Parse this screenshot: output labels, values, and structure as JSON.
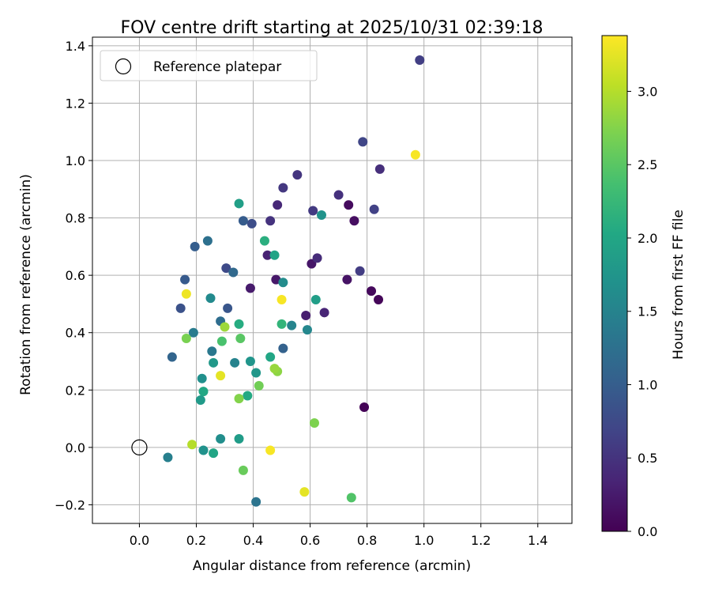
{
  "chart_data": {
    "type": "scatter",
    "title": "FOV centre drift starting at 2025/10/31 02:39:18",
    "xlabel": "Angular distance from reference (arcmin)",
    "ylabel": "Rotation from reference (arcmin)",
    "xlim": [
      -0.165,
      1.52
    ],
    "ylim": [
      -0.265,
      1.43
    ],
    "grid": true,
    "xticks": [
      0.0,
      0.2,
      0.4,
      0.6,
      0.8,
      1.0,
      1.2,
      1.4
    ],
    "xtick_labels": [
      "0.0",
      "0.2",
      "0.4",
      "0.6",
      "0.8",
      "1.0",
      "1.2",
      "1.4"
    ],
    "yticks": [
      -0.2,
      0.0,
      0.2,
      0.4,
      0.6,
      0.8,
      1.0,
      1.2,
      1.4
    ],
    "ytick_labels": [
      "−0.2",
      "0.0",
      "0.2",
      "0.4",
      "0.6",
      "0.8",
      "1.0",
      "1.2",
      "1.4"
    ],
    "legend": {
      "label": "Reference platepar",
      "placement": "top-left"
    },
    "reference_point": {
      "x": 0.0,
      "y": 0.0
    },
    "colorbar": {
      "label": "Hours from first FF file",
      "min": 0.0,
      "max": 3.38,
      "ticks": [
        0.0,
        0.5,
        1.0,
        1.5,
        2.0,
        2.5,
        3.0
      ],
      "tick_labels": [
        "0.0",
        "0.5",
        "1.0",
        "1.5",
        "2.0",
        "2.5",
        "3.0"
      ],
      "colormap": "viridis"
    },
    "points": [
      {
        "x": 0.79,
        "y": 0.14,
        "t": 0.02
      },
      {
        "x": 0.84,
        "y": 0.515,
        "t": 0.05
      },
      {
        "x": 0.815,
        "y": 0.545,
        "t": 0.08
      },
      {
        "x": 0.735,
        "y": 0.845,
        "t": 0.1
      },
      {
        "x": 0.755,
        "y": 0.79,
        "t": 0.13
      },
      {
        "x": 0.73,
        "y": 0.585,
        "t": 0.17
      },
      {
        "x": 0.605,
        "y": 0.64,
        "t": 0.2
      },
      {
        "x": 0.48,
        "y": 0.585,
        "t": 0.22
      },
      {
        "x": 0.39,
        "y": 0.555,
        "t": 0.25
      },
      {
        "x": 0.585,
        "y": 0.46,
        "t": 0.28
      },
      {
        "x": 0.45,
        "y": 0.67,
        "t": 0.32
      },
      {
        "x": 0.65,
        "y": 0.47,
        "t": 0.35
      },
      {
        "x": 0.485,
        "y": 0.845,
        "t": 0.38
      },
      {
        "x": 0.625,
        "y": 0.66,
        "t": 0.42
      },
      {
        "x": 0.845,
        "y": 0.97,
        "t": 0.45
      },
      {
        "x": 0.7,
        "y": 0.88,
        "t": 0.48
      },
      {
        "x": 0.46,
        "y": 0.79,
        "t": 0.5
      },
      {
        "x": 0.555,
        "y": 0.95,
        "t": 0.52
      },
      {
        "x": 0.505,
        "y": 0.905,
        "t": 0.55
      },
      {
        "x": 0.61,
        "y": 0.825,
        "t": 0.57
      },
      {
        "x": 0.775,
        "y": 0.615,
        "t": 0.6
      },
      {
        "x": 0.985,
        "y": 1.35,
        "t": 0.62
      },
      {
        "x": 0.825,
        "y": 0.83,
        "t": 0.65
      },
      {
        "x": 0.785,
        "y": 1.065,
        "t": 0.7
      },
      {
        "x": 0.305,
        "y": 0.625,
        "t": 0.75
      },
      {
        "x": 0.395,
        "y": 0.78,
        "t": 0.8
      },
      {
        "x": 0.145,
        "y": 0.485,
        "t": 0.85
      },
      {
        "x": 0.31,
        "y": 0.485,
        "t": 0.9
      },
      {
        "x": 0.16,
        "y": 0.585,
        "t": 0.95
      },
      {
        "x": 0.365,
        "y": 0.79,
        "t": 0.98
      },
      {
        "x": 0.195,
        "y": 0.7,
        "t": 1.0
      },
      {
        "x": 0.505,
        "y": 0.345,
        "t": 1.05
      },
      {
        "x": 0.115,
        "y": 0.315,
        "t": 1.1
      },
      {
        "x": 0.33,
        "y": 0.61,
        "t": 1.15
      },
      {
        "x": 0.285,
        "y": 0.44,
        "t": 1.2
      },
      {
        "x": 0.24,
        "y": 0.72,
        "t": 1.25
      },
      {
        "x": 0.41,
        "y": -0.19,
        "t": 1.3
      },
      {
        "x": 0.255,
        "y": 0.335,
        "t": 1.35
      },
      {
        "x": 0.19,
        "y": 0.4,
        "t": 1.4
      },
      {
        "x": 0.1,
        "y": -0.035,
        "t": 1.45
      },
      {
        "x": 0.335,
        "y": 0.295,
        "t": 1.5
      },
      {
        "x": 0.535,
        "y": 0.425,
        "t": 1.52
      },
      {
        "x": 0.59,
        "y": 0.41,
        "t": 1.55
      },
      {
        "x": 0.25,
        "y": 0.52,
        "t": 1.6
      },
      {
        "x": 0.505,
        "y": 0.575,
        "t": 1.62
      },
      {
        "x": 0.285,
        "y": 0.03,
        "t": 1.65
      },
      {
        "x": 0.22,
        "y": 0.24,
        "t": 1.68
      },
      {
        "x": 0.225,
        "y": -0.01,
        "t": 1.7
      },
      {
        "x": 0.64,
        "y": 0.81,
        "t": 1.72
      },
      {
        "x": 0.39,
        "y": 0.3,
        "t": 1.75
      },
      {
        "x": 0.41,
        "y": 0.26,
        "t": 1.78
      },
      {
        "x": 0.26,
        "y": 0.295,
        "t": 1.8
      },
      {
        "x": 0.215,
        "y": 0.165,
        "t": 1.82
      },
      {
        "x": 0.35,
        "y": 0.03,
        "t": 1.85
      },
      {
        "x": 0.62,
        "y": 0.515,
        "t": 1.88
      },
      {
        "x": 0.35,
        "y": 0.85,
        "t": 1.9
      },
      {
        "x": 0.475,
        "y": 0.67,
        "t": 1.95
      },
      {
        "x": 0.26,
        "y": -0.02,
        "t": 1.98
      },
      {
        "x": 0.46,
        "y": 0.315,
        "t": 2.0
      },
      {
        "x": 0.225,
        "y": 0.195,
        "t": 2.02
      },
      {
        "x": 0.38,
        "y": 0.18,
        "t": 2.05
      },
      {
        "x": 0.35,
        "y": 0.43,
        "t": 2.08
      },
      {
        "x": 0.44,
        "y": 0.72,
        "t": 2.12
      },
      {
        "x": 0.5,
        "y": 0.43,
        "t": 2.2
      },
      {
        "x": 0.29,
        "y": 0.37,
        "t": 2.4
      },
      {
        "x": 0.745,
        "y": -0.175,
        "t": 2.45
      },
      {
        "x": 0.355,
        "y": 0.38,
        "t": 2.5
      },
      {
        "x": 0.365,
        "y": -0.08,
        "t": 2.6
      },
      {
        "x": 0.42,
        "y": 0.215,
        "t": 2.65
      },
      {
        "x": 0.165,
        "y": 0.38,
        "t": 2.7
      },
      {
        "x": 0.615,
        "y": 0.085,
        "t": 2.72
      },
      {
        "x": 0.35,
        "y": 0.17,
        "t": 2.75
      },
      {
        "x": 0.485,
        "y": 0.265,
        "t": 2.8
      },
      {
        "x": 0.475,
        "y": 0.275,
        "t": 2.85
      },
      {
        "x": 0.3,
        "y": 0.42,
        "t": 2.88
      },
      {
        "x": 0.185,
        "y": 0.01,
        "t": 3.0
      },
      {
        "x": 0.58,
        "y": -0.155,
        "t": 3.25
      },
      {
        "x": 0.285,
        "y": 0.25,
        "t": 3.25
      },
      {
        "x": 0.165,
        "y": 0.535,
        "t": 3.3
      },
      {
        "x": 0.5,
        "y": 0.515,
        "t": 3.35
      },
      {
        "x": 0.46,
        "y": -0.01,
        "t": 3.35
      },
      {
        "x": 0.97,
        "y": 1.02,
        "t": 3.35
      }
    ]
  }
}
